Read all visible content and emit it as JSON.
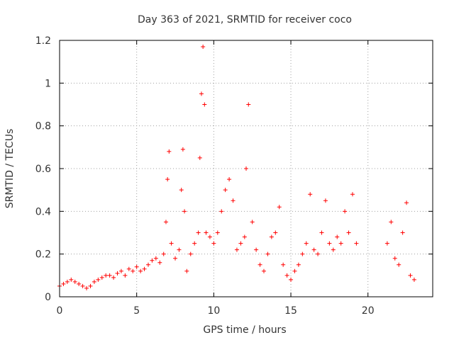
{
  "chart_data": {
    "type": "scatter",
    "title": "Day 363 of 2021, SRMTID for receiver coco",
    "xlabel": "GPS time / hours",
    "ylabel": "SRMTID / TECUs",
    "xlim": [
      0,
      24.2
    ],
    "ylim": [
      0,
      1.2
    ],
    "xticks": [
      0,
      5,
      10,
      15,
      20
    ],
    "xtick_labels": [
      "0",
      "5",
      "10",
      "15",
      "20"
    ],
    "yticks": [
      0,
      0.2,
      0.4,
      0.6,
      0.8,
      1.0,
      1.2
    ],
    "ytick_labels": [
      "0",
      "0.2",
      "0.4",
      "0.6",
      "0.8",
      "1",
      "1.2"
    ],
    "grid": true,
    "marker": "+",
    "color": "#ff0000",
    "series": [
      {
        "name": "SRMTID",
        "x": [
          0.0,
          0.25,
          0.5,
          0.75,
          1.0,
          1.25,
          1.5,
          1.75,
          2.0,
          2.25,
          2.5,
          2.75,
          3.0,
          3.25,
          3.5,
          3.75,
          4.0,
          4.25,
          4.5,
          4.75,
          5.0,
          5.25,
          5.5,
          5.75,
          6.0,
          6.25,
          6.5,
          6.75,
          6.9,
          7.0,
          7.1,
          7.25,
          7.5,
          7.75,
          7.9,
          8.0,
          8.1,
          8.25,
          8.5,
          8.75,
          9.0,
          9.1,
          9.2,
          9.3,
          9.4,
          9.5,
          9.75,
          10.0,
          10.25,
          10.5,
          10.75,
          11.0,
          11.25,
          11.5,
          11.75,
          12.0,
          12.1,
          12.25,
          12.5,
          12.75,
          13.0,
          13.25,
          13.5,
          13.75,
          14.0,
          14.25,
          14.5,
          14.75,
          15.0,
          15.25,
          15.5,
          15.75,
          16.0,
          16.25,
          16.5,
          16.75,
          17.0,
          17.25,
          17.5,
          17.75,
          18.0,
          18.25,
          18.5,
          18.75,
          19.0,
          19.25,
          21.25,
          21.5,
          21.75,
          22.0,
          22.25,
          22.5,
          22.75,
          23.0
        ],
        "y": [
          0.05,
          0.06,
          0.07,
          0.08,
          0.07,
          0.06,
          0.05,
          0.04,
          0.05,
          0.07,
          0.08,
          0.09,
          0.1,
          0.1,
          0.09,
          0.11,
          0.12,
          0.1,
          0.13,
          0.12,
          0.14,
          0.12,
          0.13,
          0.15,
          0.17,
          0.18,
          0.16,
          0.2,
          0.35,
          0.55,
          0.68,
          0.25,
          0.18,
          0.22,
          0.5,
          0.69,
          0.4,
          0.12,
          0.2,
          0.25,
          0.3,
          0.65,
          0.95,
          1.17,
          0.9,
          0.3,
          0.28,
          0.25,
          0.3,
          0.4,
          0.5,
          0.55,
          0.45,
          0.22,
          0.25,
          0.28,
          0.6,
          0.9,
          0.35,
          0.22,
          0.15,
          0.12,
          0.2,
          0.28,
          0.3,
          0.42,
          0.15,
          0.1,
          0.08,
          0.12,
          0.15,
          0.2,
          0.25,
          0.48,
          0.22,
          0.2,
          0.3,
          0.45,
          0.25,
          0.22,
          0.28,
          0.25,
          0.4,
          0.3,
          0.48,
          0.25,
          0.25,
          0.35,
          0.18,
          0.15,
          0.3,
          0.44,
          0.1,
          0.08
        ]
      }
    ]
  }
}
